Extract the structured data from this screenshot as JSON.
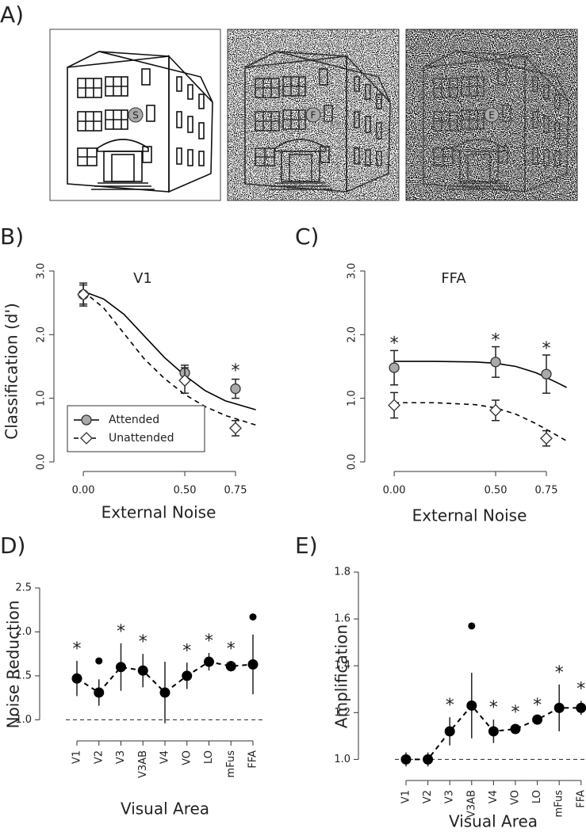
{
  "panel_a": {
    "panel_label": "A)",
    "markers": [
      "S",
      "F",
      "E"
    ]
  },
  "chart_data": [
    {
      "type": "line",
      "panel_label": "B)",
      "title": "V1",
      "x_label": "External Noise",
      "y_label": "Classification (d')",
      "x": [
        0,
        0.5,
        0.75
      ],
      "xlim": [
        -0.145,
        0.875
      ],
      "xticks": [
        {
          "value": 0,
          "label": "0.00"
        },
        {
          "value": 0.5,
          "label": "0.50"
        },
        {
          "value": 0.75,
          "label": "0.75"
        }
      ],
      "ylim": [
        -0.15,
        3.0
      ],
      "yticks": [
        {
          "value": 0,
          "label": "0.0"
        },
        {
          "value": 1,
          "label": "1.0"
        },
        {
          "value": 2,
          "label": "2.0"
        },
        {
          "value": 3,
          "label": "3.0"
        }
      ],
      "legend": "bottom-left",
      "series": [
        {
          "name": "Attended",
          "color": "#000000",
          "marker": "circle",
          "marker_fill": "#aaaaaa",
          "line_style": "solid",
          "values": [
            2.63,
            1.4,
            1.15
          ],
          "errors": [
            0.18,
            0.12,
            0.15
          ],
          "fit_x": [
            0,
            0.1,
            0.2,
            0.3,
            0.4,
            0.5,
            0.6,
            0.7,
            0.85
          ],
          "fit_values": [
            2.68,
            2.56,
            2.32,
            1.98,
            1.64,
            1.36,
            1.12,
            0.96,
            0.82
          ]
        },
        {
          "name": "Unattended",
          "color": "#000000",
          "marker": "diamond",
          "marker_fill": "#ffffff",
          "line_style": "dashed",
          "values": [
            2.63,
            1.28,
            0.53
          ],
          "errors": [
            0.15,
            0.2,
            0.12
          ],
          "fit_x": [
            0,
            0.1,
            0.2,
            0.3,
            0.4,
            0.5,
            0.6,
            0.7,
            0.85
          ],
          "fit_values": [
            2.68,
            2.42,
            2.02,
            1.62,
            1.31,
            1.06,
            0.87,
            0.73,
            0.58
          ]
        }
      ],
      "annotations": [
        {
          "text": "*",
          "x": 0.75,
          "y": 1.42
        }
      ]
    },
    {
      "type": "line",
      "panel_label": "C)",
      "title": "FFA",
      "x_label": "External Noise",
      "x": [
        0,
        0.5,
        0.75
      ],
      "xlim": [
        -0.145,
        0.875
      ],
      "xticks": [
        {
          "value": 0,
          "label": "0.00"
        },
        {
          "value": 0.5,
          "label": "0.50"
        },
        {
          "value": 0.75,
          "label": "0.75"
        }
      ],
      "ylim": [
        -0.15,
        3.0
      ],
      "yticks": [
        {
          "value": 0,
          "label": "0.0"
        },
        {
          "value": 1,
          "label": "1.0"
        },
        {
          "value": 2,
          "label": "2.0"
        },
        {
          "value": 3,
          "label": "3.0"
        }
      ],
      "series": [
        {
          "color": "#000000",
          "marker": "circle",
          "marker_fill": "#aaaaaa",
          "line_style": "solid",
          "values": [
            1.48,
            1.57,
            1.38
          ],
          "errors": [
            0.27,
            0.24,
            0.3
          ],
          "fit_x": [
            0,
            0.2,
            0.4,
            0.5,
            0.6,
            0.7,
            0.8,
            0.85
          ],
          "fit_values": [
            1.58,
            1.58,
            1.57,
            1.55,
            1.5,
            1.4,
            1.25,
            1.17
          ]
        },
        {
          "color": "#000000",
          "marker": "diamond",
          "marker_fill": "#ffffff",
          "line_style": "dashed",
          "values": [
            0.89,
            0.81,
            0.37
          ],
          "errors": [
            0.2,
            0.16,
            0.12
          ],
          "fit_x": [
            0,
            0.2,
            0.4,
            0.5,
            0.6,
            0.7,
            0.8,
            0.85
          ],
          "fit_values": [
            0.93,
            0.93,
            0.9,
            0.85,
            0.75,
            0.6,
            0.42,
            0.33
          ]
        }
      ],
      "annotations": [
        {
          "text": "*",
          "x": 0,
          "y": 1.85
        },
        {
          "text": "*",
          "x": 0.5,
          "y": 1.9
        },
        {
          "text": "*",
          "x": 0.75,
          "y": 1.77
        }
      ]
    },
    {
      "type": "line",
      "panel_label": "D)",
      "x_label": "Visual Area",
      "y_label": "Noise Reduction",
      "categories": [
        "V1",
        "V2",
        "V3",
        "V3AB",
        "V4",
        "VO",
        "LO",
        "mFus",
        "FFA"
      ],
      "ylim": [
        0.76,
        2.5
      ],
      "yticks": [
        {
          "value": 1,
          "label": "1.0"
        },
        {
          "value": 1.5,
          "label": "1.5"
        },
        {
          "value": 2,
          "label": "2.0"
        },
        {
          "value": 2.5,
          "label": "2.5"
        }
      ],
      "reference_line": 1,
      "series": [
        {
          "color": "#000000",
          "line_style": "dashed",
          "values": [
            1.47,
            1.31,
            1.6,
            1.56,
            1.31,
            1.5,
            1.66,
            1.61,
            1.63
          ],
          "errors": [
            0.2,
            0.15,
            0.27,
            0.19,
            0.35,
            0.15,
            0.1,
            0.06,
            0.34
          ],
          "outliers": [
            null,
            1.67,
            null,
            null,
            null,
            null,
            null,
            null,
            2.17
          ],
          "significance": [
            "*",
            null,
            "*",
            "*",
            null,
            "*",
            "*",
            "*",
            null
          ]
        }
      ]
    },
    {
      "type": "line",
      "panel_label": "E)",
      "x_label": "Visual Area",
      "y_label": "Amplification",
      "categories": [
        "V1",
        "V2",
        "V3",
        "V3AB",
        "V4",
        "VO",
        "LO",
        "mFus",
        "FFA"
      ],
      "ylim": [
        0.91,
        1.8
      ],
      "yticks": [
        {
          "value": 1,
          "label": "1.0"
        },
        {
          "value": 1.2,
          "label": "1.2"
        },
        {
          "value": 1.4,
          "label": "1.4"
        },
        {
          "value": 1.6,
          "label": "1.6"
        },
        {
          "value": 1.8,
          "label": "1.8"
        }
      ],
      "reference_line": 1,
      "series": [
        {
          "color": "#000000",
          "line_style": "dashed",
          "values": [
            1.0,
            1.0,
            1.12,
            1.23,
            1.12,
            1.13,
            1.17,
            1.22,
            1.22
          ],
          "errors": [
            0.03,
            0.03,
            0.06,
            0.14,
            0.05,
            0.02,
            0.01,
            0.1,
            0.03
          ],
          "outliers": [
            null,
            null,
            null,
            1.57,
            null,
            null,
            null,
            null,
            null
          ],
          "significance": [
            null,
            null,
            "*",
            null,
            "*",
            "*",
            "*",
            "*",
            "*"
          ]
        }
      ]
    }
  ]
}
